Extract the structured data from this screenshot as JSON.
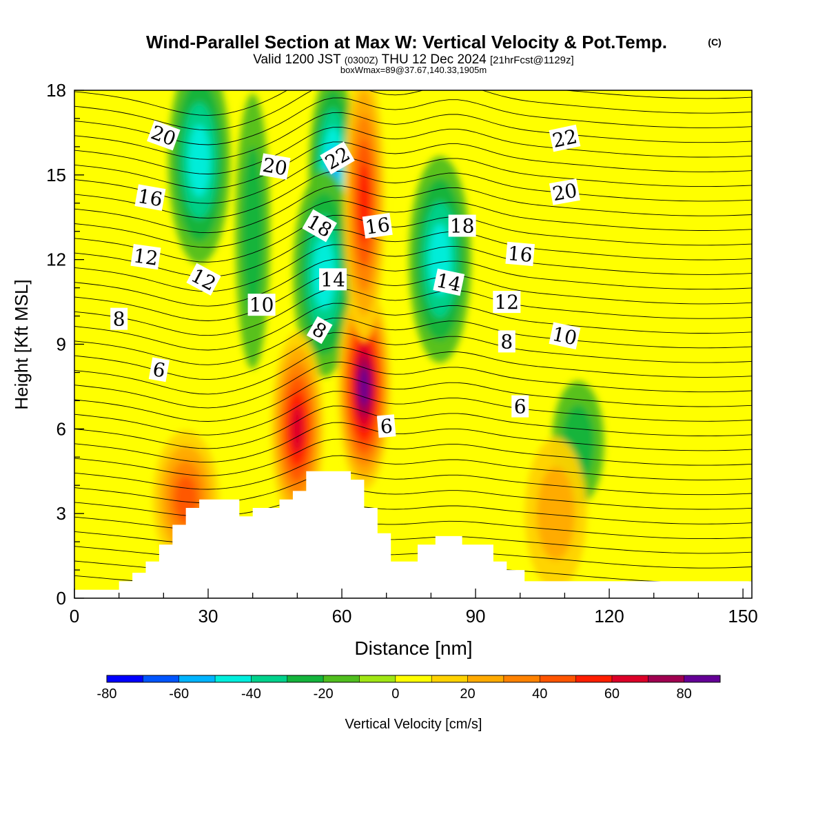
{
  "header": {
    "title": "Wind-Parallel Section at Max W: Vertical Velocity & Pot.Temp.",
    "copyright": "(C)",
    "valid_a": "Valid 1200 JST",
    "valid_utc": "(0300Z)",
    "valid_b": "THU 12 Dec 2024",
    "forecast": "[21hrFcst@1129z]",
    "boxinfo": "boxWmax=89@37.67,140.33,1905m"
  },
  "chart_data": {
    "type": "heatmap",
    "xlabel": "Distance [nm]",
    "ylabel": "Height [Kft MSL]",
    "xlim": [
      0,
      152
    ],
    "ylim": [
      0,
      18
    ],
    "x_ticks": [
      "0",
      "30",
      "60",
      "90",
      "120",
      "150"
    ],
    "y_ticks": [
      "0",
      "3",
      "6",
      "9",
      "12",
      "15",
      "18"
    ],
    "colorbar": {
      "label": "Vertical Velocity [cm/s]",
      "levels": [
        -80,
        -70,
        -60,
        -50,
        -40,
        -30,
        -20,
        -10,
        0,
        10,
        20,
        30,
        40,
        50,
        60,
        70,
        80,
        90
      ],
      "tick_labels": [
        "-80",
        "-60",
        "-40",
        "-20",
        "0",
        "20",
        "40",
        "60",
        "80"
      ],
      "colors": [
        "#0000ff",
        "#0055ff",
        "#00b4ff",
        "#00eedd",
        "#00d28c",
        "#14b43c",
        "#50be1e",
        "#a0e614",
        "#ffff00",
        "#ffd200",
        "#ffaa00",
        "#ff8200",
        "#ff5500",
        "#ff1e00",
        "#dc0028",
        "#a00050",
        "#640096"
      ]
    },
    "velocity_features": [
      {
        "x": 58,
        "y": 15,
        "value": -55
      },
      {
        "x": 56,
        "y": 11.5,
        "value": -45
      },
      {
        "x": 28,
        "y": 15.5,
        "value": -45
      },
      {
        "x": 82,
        "y": 12,
        "value": -45
      },
      {
        "x": 113,
        "y": 5.5,
        "value": -25
      },
      {
        "x": 40,
        "y": 13,
        "value": -20
      },
      {
        "x": 65,
        "y": 7.5,
        "value": 89
      },
      {
        "x": 65,
        "y": 14,
        "value": 55
      },
      {
        "x": 50,
        "y": 6,
        "value": 60
      },
      {
        "x": 25,
        "y": 3.5,
        "value": 45
      },
      {
        "x": 108,
        "y": 3,
        "value": 25
      }
    ],
    "terrain": {
      "x": [
        0,
        10,
        13,
        16,
        19,
        22,
        25,
        28,
        31,
        37,
        40,
        46,
        49,
        52,
        58,
        62,
        65,
        68,
        71,
        74,
        77,
        81,
        84,
        87,
        91,
        94,
        97,
        101,
        152
      ],
      "height": [
        0.3,
        0.6,
        0.9,
        1.3,
        1.9,
        2.6,
        3.2,
        3.5,
        3.5,
        2.9,
        3.2,
        3.5,
        3.8,
        4.5,
        4.5,
        4.2,
        3.2,
        2.3,
        1.3,
        1.3,
        1.9,
        2.2,
        2.2,
        1.9,
        1.9,
        1.3,
        1.0,
        0.6,
        0.3
      ]
    },
    "theta_contour_labels": [
      {
        "text": "20",
        "x": 20,
        "y": 16.4,
        "rot": 20
      },
      {
        "text": "20",
        "x": 45,
        "y": 15.3,
        "rot": 10
      },
      {
        "text": "22",
        "x": 59,
        "y": 15.6,
        "rot": -30
      },
      {
        "text": "22",
        "x": 110,
        "y": 16.3,
        "rot": -12
      },
      {
        "text": "16",
        "x": 17,
        "y": 14.2,
        "rot": 10
      },
      {
        "text": "20",
        "x": 110,
        "y": 14.4,
        "rot": -10
      },
      {
        "text": "18",
        "x": 55,
        "y": 13.2,
        "rot": 30
      },
      {
        "text": "16",
        "x": 68,
        "y": 13.2,
        "rot": -8
      },
      {
        "text": "18",
        "x": 87,
        "y": 13.2,
        "rot": 0
      },
      {
        "text": "12",
        "x": 16,
        "y": 12.1,
        "rot": 8
      },
      {
        "text": "16",
        "x": 100,
        "y": 12.2,
        "rot": 5
      },
      {
        "text": "12",
        "x": 29,
        "y": 11.3,
        "rot": 28
      },
      {
        "text": "14",
        "x": 58,
        "y": 11.3,
        "rot": 0
      },
      {
        "text": "14",
        "x": 84,
        "y": 11.2,
        "rot": 12
      },
      {
        "text": "12",
        "x": 97,
        "y": 10.5,
        "rot": 0
      },
      {
        "text": "10",
        "x": 42,
        "y": 10.4,
        "rot": 0
      },
      {
        "text": "8",
        "x": 10,
        "y": 9.9,
        "rot": 0
      },
      {
        "text": "8",
        "x": 55,
        "y": 9.5,
        "rot": 30
      },
      {
        "text": "10",
        "x": 110,
        "y": 9.3,
        "rot": 12
      },
      {
        "text": "8",
        "x": 97,
        "y": 9.1,
        "rot": 0
      },
      {
        "text": "6",
        "x": 19,
        "y": 8.1,
        "rot": 10
      },
      {
        "text": "6",
        "x": 100,
        "y": 6.8,
        "rot": 0
      },
      {
        "text": "6",
        "x": 70,
        "y": 6.1,
        "rot": -5
      }
    ]
  }
}
